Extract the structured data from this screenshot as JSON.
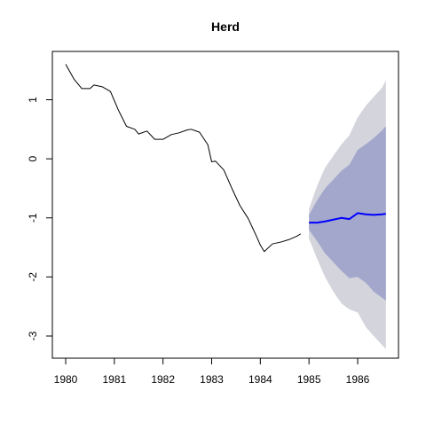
{
  "chart_data": {
    "type": "line",
    "title": "Herd",
    "xlabel": "",
    "ylabel": "",
    "xlim": [
      1980,
      1986.6
    ],
    "ylim": [
      -3.2,
      1.7
    ],
    "x_ticks": [
      "1980",
      "1981",
      "1982",
      "1983",
      "1984",
      "1985",
      "1986"
    ],
    "y_ticks": [
      "1",
      "0",
      "-1",
      "-2",
      "-3"
    ],
    "grid": false,
    "legend": "none",
    "series": [
      {
        "kind": "observed",
        "color": "#000000",
        "x": [
          1980.0,
          1980.17,
          1980.33,
          1980.5,
          1980.58,
          1980.75,
          1980.92,
          1981.08,
          1981.25,
          1981.42,
          1981.5,
          1981.67,
          1981.83,
          1982.0,
          1982.17,
          1982.33,
          1982.5,
          1982.58,
          1982.75,
          1982.92,
          1983.0,
          1983.08,
          1983.25,
          1983.42,
          1983.58,
          1983.75,
          1983.92,
          1984.0,
          1984.08,
          1984.25,
          1984.42,
          1984.58,
          1984.75,
          1984.83
        ],
        "y": [
          1.6,
          1.35,
          1.19,
          1.19,
          1.25,
          1.22,
          1.14,
          0.83,
          0.55,
          0.5,
          0.42,
          0.47,
          0.33,
          0.33,
          0.41,
          0.44,
          0.49,
          0.5,
          0.45,
          0.24,
          -0.05,
          -0.04,
          -0.19,
          -0.51,
          -0.79,
          -1.01,
          -1.31,
          -1.46,
          -1.57,
          -1.44,
          -1.41,
          -1.37,
          -1.31,
          -1.27
        ]
      },
      {
        "kind": "forecast",
        "color": "#0000ff",
        "x": [
          1985.0,
          1985.17,
          1985.33,
          1985.5,
          1985.67,
          1985.83,
          1986.0,
          1986.17,
          1986.33,
          1986.5,
          1986.58
        ],
        "y": [
          -1.08,
          -1.08,
          -1.06,
          -1.03,
          -1.0,
          -1.02,
          -0.92,
          -0.94,
          -0.95,
          -0.94,
          -0.93
        ],
        "band_80": {
          "color": "#a3a7cc",
          "upper": [
            -0.95,
            -0.7,
            -0.5,
            -0.35,
            -0.2,
            -0.1,
            0.15,
            0.25,
            0.35,
            0.48,
            0.55
          ],
          "lower": [
            -1.2,
            -1.4,
            -1.6,
            -1.75,
            -1.9,
            -2.02,
            -2.0,
            -2.1,
            -2.25,
            -2.35,
            -2.4
          ]
        },
        "band_95": {
          "color": "#d4d4dc",
          "upper": [
            -0.85,
            -0.45,
            -0.15,
            0.05,
            0.25,
            0.4,
            0.7,
            0.9,
            1.05,
            1.2,
            1.33
          ],
          "lower": [
            -1.35,
            -1.7,
            -2.0,
            -2.25,
            -2.45,
            -2.55,
            -2.6,
            -2.85,
            -3.0,
            -3.15,
            -3.22
          ]
        }
      }
    ]
  }
}
